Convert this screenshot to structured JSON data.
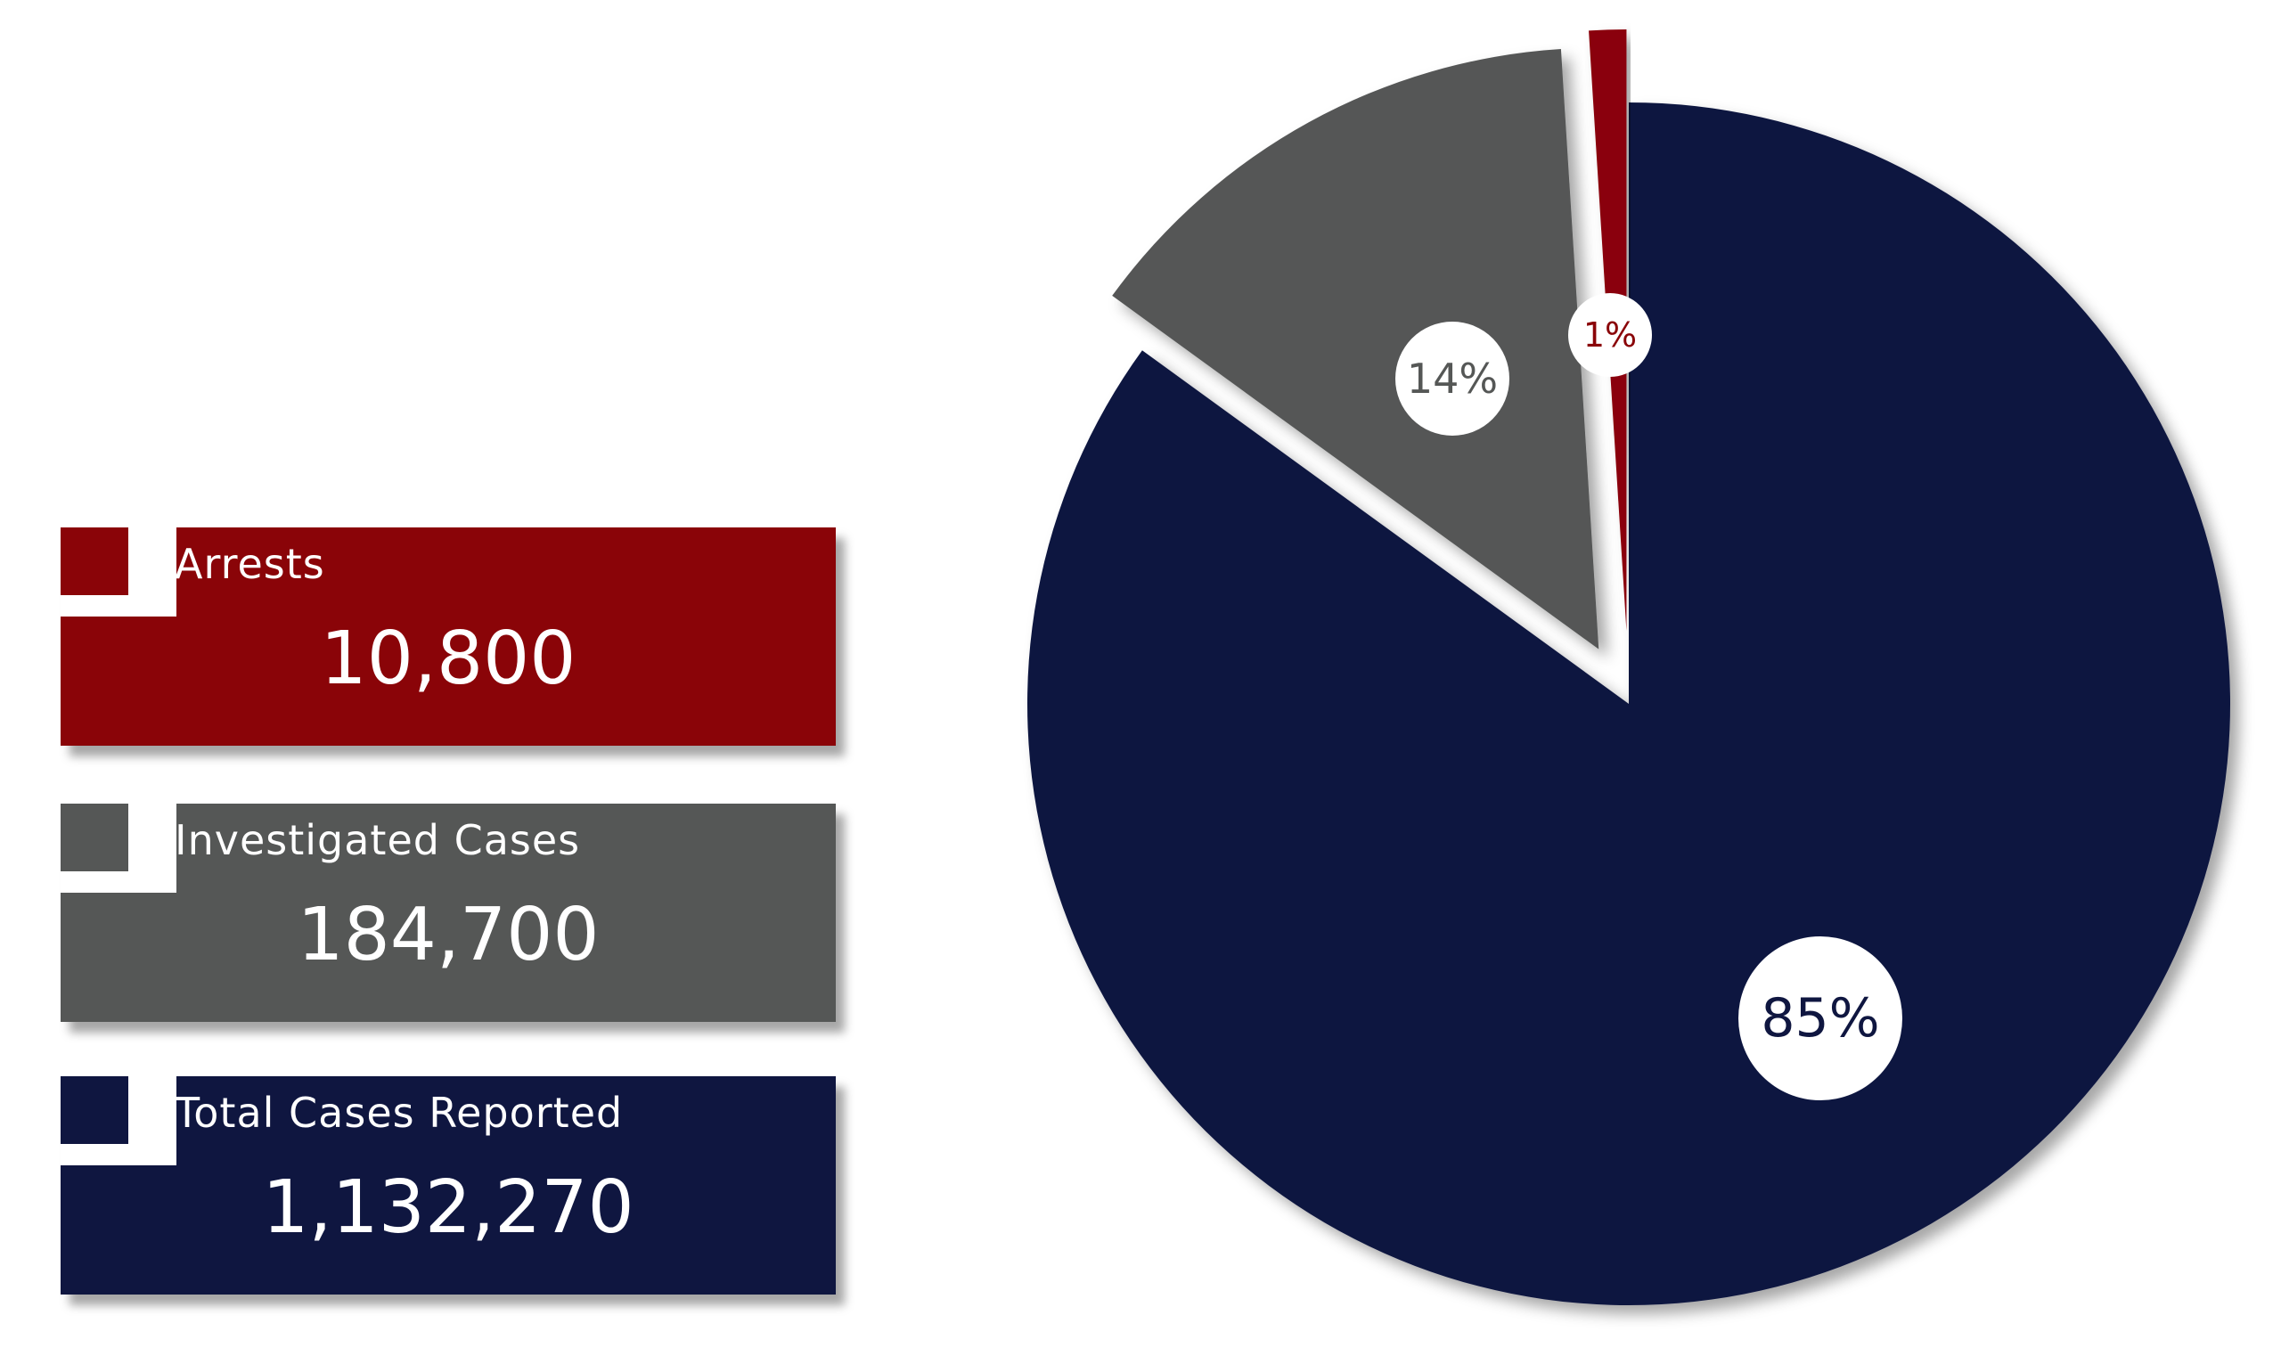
{
  "cards": [
    {
      "label": "Arrests",
      "value": "10,800",
      "color": "#8a0408"
    },
    {
      "label": "Investigated Cases",
      "value": "184,700",
      "color": "#555756"
    },
    {
      "label": "Total Cases Reported",
      "value": "1,132,270",
      "color": "#0f1640"
    }
  ],
  "chart_data": {
    "type": "pie",
    "slices": [
      {
        "label": "Total Cases Reported",
        "percent": 85,
        "display": "85%",
        "color": "#0f1640",
        "text_color": "#0f1640"
      },
      {
        "label": "Investigated Cases",
        "percent": 14,
        "display": "14%",
        "color": "#555756",
        "text_color": "#555756"
      },
      {
        "label": "Arrests",
        "percent": 1,
        "display": "1%",
        "color": "#8a0408",
        "text_color": "#8a0408"
      }
    ]
  }
}
